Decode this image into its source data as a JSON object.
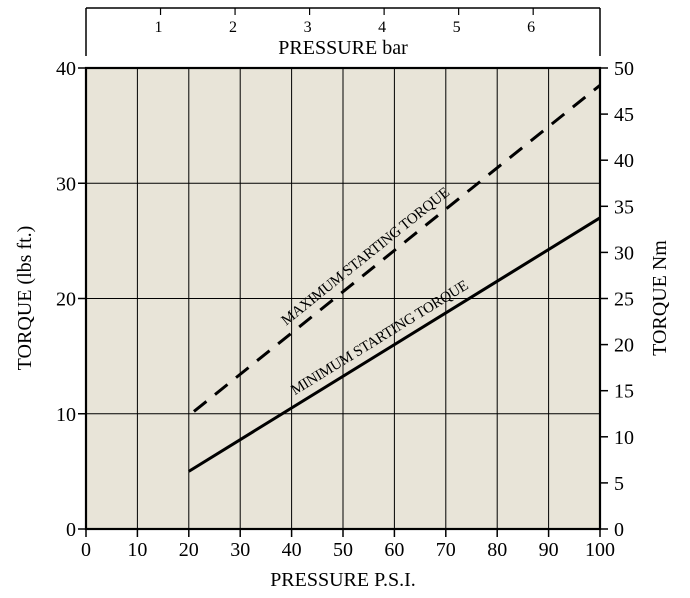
{
  "chart_data": {
    "type": "line",
    "title": "",
    "xlabel": "PRESSURE P.S.I.",
    "ylabel": "TORQUE (lbs ft.)",
    "y2label": "TORQUE Nm",
    "x2label": "PRESSURE bar",
    "xlim": [
      0,
      100
    ],
    "ylim": [
      0,
      40
    ],
    "y2lim": [
      0,
      50
    ],
    "xticks": [
      "0",
      "10",
      "20",
      "30",
      "40",
      "50",
      "60",
      "70",
      "80",
      "90",
      "100"
    ],
    "yticks": [
      "0",
      "10",
      "20",
      "30",
      "40"
    ],
    "y2ticks": [
      "0",
      "5",
      "10",
      "15",
      "20",
      "25",
      "30",
      "35",
      "40",
      "45",
      "50"
    ],
    "x2ticks": [
      {
        "label": "1",
        "psi": 14.5
      },
      {
        "label": "2",
        "psi": 29
      },
      {
        "label": "3",
        "psi": 43.5
      },
      {
        "label": "4",
        "psi": 58
      },
      {
        "label": "5",
        "psi": 72.5
      },
      {
        "label": "6",
        "psi": 87
      }
    ],
    "grid": true,
    "background": "#e8e4d8",
    "series": [
      {
        "name": "MAXIMUM STARTING TORQUE",
        "style": "dashed",
        "x": [
          21,
          100
        ],
        "y": [
          10.2,
          38.5
        ]
      },
      {
        "name": "MINIMUM STARTING TORQUE",
        "style": "solid",
        "x": [
          20,
          100
        ],
        "y": [
          5,
          27
        ]
      }
    ]
  }
}
